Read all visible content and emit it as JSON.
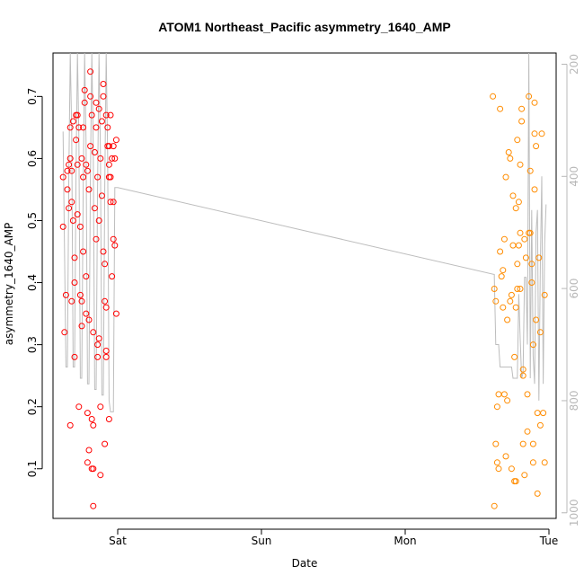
{
  "chart_data": {
    "type": "scatter",
    "title": "ATOM1 Northeast_Pacific asymmetry_1640_AMP",
    "xlabel": "Date",
    "ylabel": "asymmetry_1640_AMP",
    "x_unit": "days from Saturday 00:00",
    "xlim": [
      -0.45,
      3.05
    ],
    "ylim": [
      0.02,
      0.77
    ],
    "x_ticks": [
      {
        "value": 0,
        "label": "Sat"
      },
      {
        "value": 1,
        "label": "Sun"
      },
      {
        "value": 2,
        "label": "Mon"
      },
      {
        "value": 3,
        "label": "Tue"
      }
    ],
    "y_ticks": [
      0.1,
      0.2,
      0.3,
      0.4,
      0.5,
      0.6,
      0.7
    ],
    "secondary_axis": {
      "side": "right",
      "inverted": true,
      "range": [
        180,
        1010
      ],
      "ticks": [
        200,
        400,
        600,
        800,
        1000
      ],
      "color": "#b8b8b8",
      "description": "depth trace (grey line)"
    },
    "grid": false,
    "series": [
      {
        "color": "#ff0000",
        "marker": "open-circle",
        "points": [
          [
            -0.38,
            0.57
          ],
          [
            -0.38,
            0.49
          ],
          [
            -0.37,
            0.32
          ],
          [
            -0.36,
            0.38
          ],
          [
            -0.35,
            0.58
          ],
          [
            -0.35,
            0.55
          ],
          [
            -0.34,
            0.52
          ],
          [
            -0.34,
            0.59
          ],
          [
            -0.33,
            0.65
          ],
          [
            -0.33,
            0.17
          ],
          [
            -0.33,
            0.6
          ],
          [
            -0.32,
            0.58
          ],
          [
            -0.32,
            0.37
          ],
          [
            -0.32,
            0.53
          ],
          [
            -0.31,
            0.5
          ],
          [
            -0.31,
            0.66
          ],
          [
            -0.3,
            0.28
          ],
          [
            -0.3,
            0.4
          ],
          [
            -0.3,
            0.44
          ],
          [
            -0.29,
            0.63
          ],
          [
            -0.29,
            0.67
          ],
          [
            -0.28,
            0.51
          ],
          [
            -0.28,
            0.59
          ],
          [
            -0.28,
            0.67
          ],
          [
            -0.27,
            0.2
          ],
          [
            -0.27,
            0.65
          ],
          [
            -0.26,
            0.38
          ],
          [
            -0.26,
            0.49
          ],
          [
            -0.25,
            0.33
          ],
          [
            -0.25,
            0.37
          ],
          [
            -0.25,
            0.6
          ],
          [
            -0.24,
            0.57
          ],
          [
            -0.24,
            0.65
          ],
          [
            -0.24,
            0.45
          ],
          [
            -0.23,
            0.69
          ],
          [
            -0.23,
            0.71
          ],
          [
            -0.22,
            0.41
          ],
          [
            -0.22,
            0.59
          ],
          [
            -0.22,
            0.35
          ],
          [
            -0.21,
            0.58
          ],
          [
            -0.21,
            0.19
          ],
          [
            -0.21,
            0.11
          ],
          [
            -0.2,
            0.13
          ],
          [
            -0.2,
            0.34
          ],
          [
            -0.2,
            0.55
          ],
          [
            -0.19,
            0.62
          ],
          [
            -0.19,
            0.7
          ],
          [
            -0.19,
            0.74
          ],
          [
            -0.18,
            0.67
          ],
          [
            -0.18,
            0.18
          ],
          [
            -0.18,
            0.1
          ],
          [
            -0.17,
            0.1
          ],
          [
            -0.17,
            0.32
          ],
          [
            -0.17,
            0.17
          ],
          [
            -0.17,
            0.04
          ],
          [
            -0.16,
            0.52
          ],
          [
            -0.16,
            0.61
          ],
          [
            -0.15,
            0.65
          ],
          [
            -0.15,
            0.69
          ],
          [
            -0.15,
            0.47
          ],
          [
            -0.14,
            0.28
          ],
          [
            -0.14,
            0.57
          ],
          [
            -0.14,
            0.3
          ],
          [
            -0.13,
            0.68
          ],
          [
            -0.13,
            0.5
          ],
          [
            -0.13,
            0.31
          ],
          [
            -0.12,
            0.09
          ],
          [
            -0.12,
            0.2
          ],
          [
            -0.12,
            0.6
          ],
          [
            -0.11,
            0.54
          ],
          [
            -0.11,
            0.66
          ],
          [
            -0.1,
            0.7
          ],
          [
            -0.1,
            0.45
          ],
          [
            -0.1,
            0.72
          ],
          [
            -0.09,
            0.14
          ],
          [
            -0.09,
            0.37
          ],
          [
            -0.09,
            0.43
          ],
          [
            -0.08,
            0.67
          ],
          [
            -0.08,
            0.36
          ],
          [
            -0.08,
            0.29
          ],
          [
            -0.08,
            0.28
          ],
          [
            -0.07,
            0.65
          ],
          [
            -0.07,
            0.62
          ],
          [
            -0.06,
            0.18
          ],
          [
            -0.06,
            0.62
          ],
          [
            -0.06,
            0.57
          ],
          [
            -0.06,
            0.59
          ],
          [
            -0.05,
            0.53
          ],
          [
            -0.05,
            0.67
          ],
          [
            -0.05,
            0.57
          ],
          [
            -0.04,
            0.41
          ],
          [
            -0.04,
            0.6
          ],
          [
            -0.03,
            0.62
          ],
          [
            -0.03,
            0.53
          ],
          [
            -0.03,
            0.47
          ],
          [
            -0.02,
            0.46
          ],
          [
            -0.02,
            0.6
          ],
          [
            -0.01,
            0.63
          ],
          [
            -0.01,
            0.35
          ]
        ]
      },
      {
        "color": "#ff8c00",
        "marker": "open-circle",
        "points": [
          [
            2.61,
            0.7
          ],
          [
            2.62,
            0.04
          ],
          [
            2.62,
            0.39
          ],
          [
            2.63,
            0.37
          ],
          [
            2.63,
            0.14
          ],
          [
            2.64,
            0.11
          ],
          [
            2.64,
            0.2
          ],
          [
            2.65,
            0.1
          ],
          [
            2.65,
            0.22
          ],
          [
            2.66,
            0.45
          ],
          [
            2.66,
            0.68
          ],
          [
            2.67,
            0.41
          ],
          [
            2.68,
            0.36
          ],
          [
            2.68,
            0.42
          ],
          [
            2.69,
            0.22
          ],
          [
            2.69,
            0.47
          ],
          [
            2.7,
            0.12
          ],
          [
            2.7,
            0.57
          ],
          [
            2.71,
            0.21
          ],
          [
            2.71,
            0.34
          ],
          [
            2.72,
            0.61
          ],
          [
            2.73,
            0.37
          ],
          [
            2.73,
            0.6
          ],
          [
            2.74,
            0.38
          ],
          [
            2.74,
            0.1
          ],
          [
            2.75,
            0.54
          ],
          [
            2.75,
            0.46
          ],
          [
            2.76,
            0.08
          ],
          [
            2.76,
            0.28
          ],
          [
            2.77,
            0.52
          ],
          [
            2.77,
            0.36
          ],
          [
            2.77,
            0.08
          ],
          [
            2.78,
            0.43
          ],
          [
            2.78,
            0.63
          ],
          [
            2.78,
            0.39
          ],
          [
            2.79,
            0.53
          ],
          [
            2.79,
            0.46
          ],
          [
            2.8,
            0.39
          ],
          [
            2.8,
            0.59
          ],
          [
            2.8,
            0.48
          ],
          [
            2.81,
            0.68
          ],
          [
            2.81,
            0.66
          ],
          [
            2.82,
            0.26
          ],
          [
            2.82,
            0.14
          ],
          [
            2.82,
            0.25
          ],
          [
            2.83,
            0.09
          ],
          [
            2.83,
            0.47
          ],
          [
            2.84,
            0.44
          ],
          [
            2.85,
            0.22
          ],
          [
            2.85,
            0.16
          ],
          [
            2.86,
            0.7
          ],
          [
            2.86,
            0.48
          ],
          [
            2.87,
            0.58
          ],
          [
            2.87,
            0.48
          ],
          [
            2.88,
            0.43
          ],
          [
            2.88,
            0.4
          ],
          [
            2.89,
            0.11
          ],
          [
            2.89,
            0.14
          ],
          [
            2.89,
            0.3
          ],
          [
            2.9,
            0.64
          ],
          [
            2.9,
            0.69
          ],
          [
            2.9,
            0.55
          ],
          [
            2.91,
            0.62
          ],
          [
            2.91,
            0.34
          ],
          [
            2.92,
            0.19
          ],
          [
            2.92,
            0.06
          ],
          [
            2.93,
            0.44
          ],
          [
            2.94,
            0.32
          ],
          [
            2.94,
            0.17
          ],
          [
            2.95,
            0.64
          ],
          [
            2.96,
            0.19
          ],
          [
            2.97,
            0.11
          ],
          [
            2.97,
            0.38
          ]
        ]
      }
    ],
    "depth_line": {
      "color": "#bdbdbd",
      "points": [
        [
          -0.38,
          320
        ],
        [
          -0.36,
          740
        ],
        [
          -0.35,
          740
        ],
        [
          -0.34,
          400
        ],
        [
          -0.33,
          180
        ],
        [
          -0.32,
          320
        ],
        [
          -0.31,
          740
        ],
        [
          -0.3,
          740
        ],
        [
          -0.29,
          400
        ],
        [
          -0.28,
          180
        ],
        [
          -0.27,
          330
        ],
        [
          -0.26,
          760
        ],
        [
          -0.25,
          760
        ],
        [
          -0.24,
          420
        ],
        [
          -0.23,
          180
        ],
        [
          -0.22,
          340
        ],
        [
          -0.21,
          770
        ],
        [
          -0.2,
          770
        ],
        [
          -0.19,
          410
        ],
        [
          -0.18,
          180
        ],
        [
          -0.17,
          350
        ],
        [
          -0.16,
          780
        ],
        [
          -0.15,
          780
        ],
        [
          -0.14,
          420
        ],
        [
          -0.13,
          180
        ],
        [
          -0.12,
          360
        ],
        [
          -0.11,
          790
        ],
        [
          -0.1,
          790
        ],
        [
          -0.09,
          420
        ],
        [
          -0.08,
          180
        ],
        [
          -0.07,
          360
        ],
        [
          -0.06,
          800
        ],
        [
          -0.05,
          820
        ],
        [
          -0.04,
          820
        ],
        [
          -0.03,
          820
        ],
        [
          -0.02,
          420
        ],
        [
          0.0,
          420
        ],
        [
          2.62,
          575
        ],
        [
          2.62,
          580
        ],
        [
          2.63,
          700
        ],
        [
          2.65,
          700
        ],
        [
          2.66,
          740
        ],
        [
          2.74,
          740
        ],
        [
          2.75,
          760
        ],
        [
          2.78,
          760
        ],
        [
          2.79,
          610
        ],
        [
          2.8,
          690
        ],
        [
          2.81,
          760
        ],
        [
          2.82,
          750
        ],
        [
          2.83,
          580
        ],
        [
          2.84,
          580
        ],
        [
          2.85,
          700
        ],
        [
          2.86,
          180
        ],
        [
          2.87,
          760
        ],
        [
          2.88,
          460
        ],
        [
          2.89,
          720
        ],
        [
          2.9,
          770
        ],
        [
          2.91,
          500
        ],
        [
          2.92,
          460
        ],
        [
          2.93,
          800
        ],
        [
          2.94,
          560
        ],
        [
          2.95,
          400
        ],
        [
          2.96,
          770
        ],
        [
          2.97,
          520
        ],
        [
          2.98,
          450
        ]
      ]
    }
  }
}
